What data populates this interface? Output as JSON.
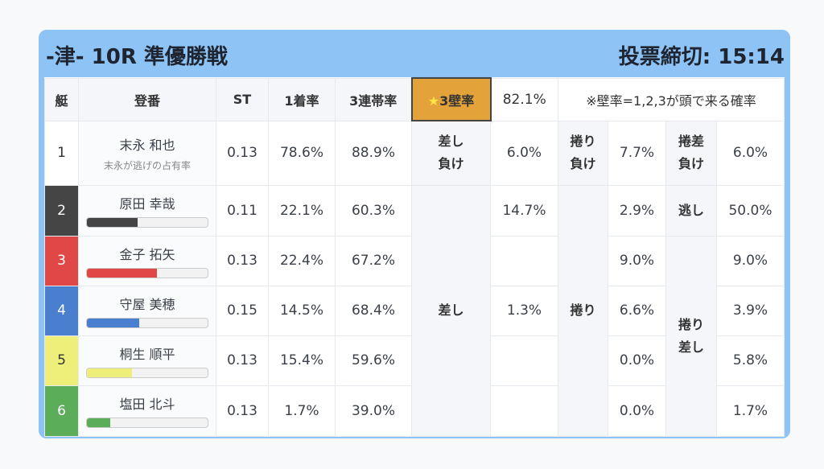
{
  "header": {
    "title": "-津- 10R 準優勝戦",
    "deadline": "投票締切: 15:14"
  },
  "columns": {
    "boat": "艇",
    "reg": "登番",
    "st": "ST",
    "win": "1着率",
    "trio": "3連帯率",
    "star": "★",
    "wall": "3壁率",
    "wall_value": "82.1%",
    "note": "※壁率=1,2,3が頭で来る確率"
  },
  "rows": [
    {
      "boat": "1",
      "name": "末永 和也",
      "sub": "末永が逃げの占有率",
      "st": "0.13",
      "win": "78.6%",
      "trio": "88.9%",
      "k1": "差し負け",
      "v1": "6.0%",
      "k2": "捲り負け",
      "v2": "7.7%",
      "k3": "捲差負け",
      "v3": "6.0%",
      "color": "#ffffff",
      "text": "#333333"
    },
    {
      "boat": "2",
      "name": "原田 幸哉",
      "bar": 0.42,
      "st": "0.11",
      "win": "22.1%",
      "trio": "60.3%",
      "v1": "14.7%",
      "v2": "2.9%",
      "k3": "逃し",
      "v3": "50.0%",
      "color": "#454545",
      "text": "#ffffff"
    },
    {
      "boat": "3",
      "name": "金子 拓矢",
      "bar": 0.58,
      "st": "0.13",
      "win": "22.4%",
      "trio": "67.2%",
      "v1": "",
      "v2": "9.0%",
      "v3": "9.0%",
      "color": "#e04848",
      "text": "#ffffff"
    },
    {
      "boat": "4",
      "name": "守屋 美穂",
      "bar": 0.43,
      "st": "0.15",
      "win": "14.5%",
      "trio": "68.4%",
      "v1": "1.3%",
      "v2": "6.6%",
      "v3": "3.9%",
      "color": "#4a7fd0",
      "text": "#ffffff"
    },
    {
      "boat": "5",
      "name": "桐生 順平",
      "bar": 0.37,
      "st": "0.13",
      "win": "15.4%",
      "trio": "59.6%",
      "v1": "",
      "v2": "0.0%",
      "v3": "5.8%",
      "color": "#eeee7a",
      "text": "#333333"
    },
    {
      "boat": "6",
      "name": "塩田 北斗",
      "bar": 0.19,
      "st": "0.13",
      "win": "1.7%",
      "trio": "39.0%",
      "v1": "",
      "v2": "0.0%",
      "v3": "1.7%",
      "color": "#5cad5a",
      "text": "#ffffff"
    }
  ],
  "merged": {
    "sashi": "差し",
    "makuri": "捲り",
    "makurizashi": "捲り差し"
  }
}
